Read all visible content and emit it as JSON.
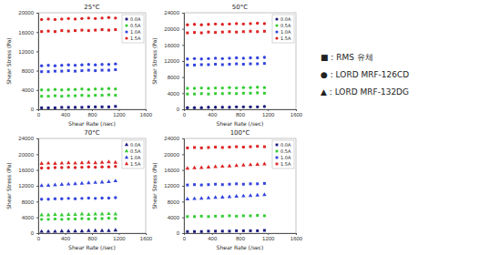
{
  "chart_data": [
    {
      "type": "scatter",
      "title": "25°C",
      "x_label": "Shear Rate (/sec)",
      "y_label": "Shear Stress (Pa)",
      "x": [
        50,
        150,
        250,
        350,
        450,
        550,
        650,
        750,
        850,
        950,
        1050,
        1150
      ],
      "xlim": [
        0,
        1600
      ],
      "xticks": [
        0,
        400,
        800,
        1200,
        1600
      ],
      "ylim": [
        0,
        20000
      ],
      "yticks": [
        0,
        4000,
        8000,
        12000,
        16000,
        20000
      ],
      "legend": "upper right",
      "series": [
        {
          "name": "0.0A",
          "color": "#1a1a80",
          "marker": "square",
          "values": [
            300,
            300,
            300,
            400,
            400,
            400,
            400,
            500,
            500,
            500,
            500,
            600
          ]
        },
        {
          "name": "0.5A",
          "color": "#33cc33",
          "marker": "circle",
          "values": [
            4000,
            4000,
            4100,
            4000,
            4100,
            4100,
            4200,
            4100,
            4200,
            4200,
            4300,
            4200
          ]
        },
        {
          "name": "0.5A",
          "color": "#33cc33",
          "marker": "square",
          "values": [
            2700,
            2700,
            2800,
            2700,
            2800,
            2800,
            2900,
            2800,
            2900,
            2900,
            3000,
            2900
          ]
        },
        {
          "name": "1.0A",
          "color": "#3344dd",
          "marker": "circle",
          "values": [
            9000,
            9100,
            9000,
            9100,
            9200,
            9100,
            9200,
            9300,
            9200,
            9300,
            9300,
            9400
          ]
        },
        {
          "name": "1.0A",
          "color": "#3344dd",
          "marker": "square",
          "values": [
            7800,
            7800,
            7900,
            7900,
            8000,
            7900,
            8000,
            8100,
            8000,
            8100,
            8100,
            8200
          ]
        },
        {
          "name": "1.5A",
          "color": "#dd2222",
          "marker": "circle",
          "values": [
            18600,
            18700,
            18600,
            18700,
            18800,
            18700,
            18800,
            18900,
            18800,
            18900,
            19000,
            18900
          ]
        },
        {
          "name": "1.5A",
          "color": "#dd2222",
          "marker": "square",
          "values": [
            16100,
            16200,
            16100,
            16300,
            16200,
            16300,
            16400,
            16300,
            16400,
            16500,
            16400,
            16500
          ]
        }
      ]
    },
    {
      "type": "scatter",
      "title": "50°C",
      "x_label": "Shear Rate (/sec)",
      "y_label": "Shear Stress (Pa)",
      "x": [
        50,
        150,
        250,
        350,
        450,
        550,
        650,
        750,
        850,
        950,
        1050,
        1150
      ],
      "xlim": [
        0,
        1600
      ],
      "xticks": [
        0,
        400,
        800,
        1200,
        1600
      ],
      "ylim": [
        0,
        24000
      ],
      "yticks": [
        0,
        4000,
        8000,
        12000,
        16000,
        20000,
        24000
      ],
      "legend": "upper right",
      "series": [
        {
          "name": "0.0A",
          "color": "#1a1a80",
          "marker": "circle",
          "values": [
            400,
            400,
            400,
            500,
            500,
            500,
            500,
            600,
            600,
            600,
            600,
            700
          ]
        },
        {
          "name": "0.5A",
          "color": "#33cc33",
          "marker": "circle",
          "values": [
            5200,
            5200,
            5300,
            5200,
            5300,
            5300,
            5400,
            5300,
            5400,
            5400,
            5500,
            5400
          ]
        },
        {
          "name": "0.5A",
          "color": "#33cc33",
          "marker": "square",
          "values": [
            3800,
            3800,
            3900,
            3800,
            3900,
            3900,
            4000,
            3900,
            4000,
            4000,
            4100,
            4000
          ]
        },
        {
          "name": "1.0A",
          "color": "#3344dd",
          "marker": "circle",
          "values": [
            12500,
            12600,
            12500,
            12600,
            12700,
            12600,
            12700,
            12800,
            12700,
            12800,
            12800,
            12900
          ]
        },
        {
          "name": "1.0A",
          "color": "#3344dd",
          "marker": "square",
          "values": [
            11000,
            11000,
            11100,
            11100,
            11200,
            11100,
            11200,
            11300,
            11200,
            11300,
            11300,
            11400
          ]
        },
        {
          "name": "1.5A",
          "color": "#dd2222",
          "marker": "circle",
          "values": [
            21000,
            21100,
            21000,
            21100,
            21200,
            21100,
            21200,
            21300,
            21200,
            21300,
            21400,
            21300
          ]
        },
        {
          "name": "1.5A",
          "color": "#dd2222",
          "marker": "square",
          "values": [
            19000,
            19100,
            19000,
            19200,
            19100,
            19200,
            19300,
            19200,
            19300,
            19400,
            19300,
            19400
          ]
        }
      ]
    },
    {
      "type": "scatter",
      "title": "70°C",
      "x_label": "Shear Rate (/sec)",
      "y_label": "Shear Stress (Pa)",
      "x": [
        50,
        150,
        250,
        350,
        450,
        550,
        650,
        750,
        850,
        950,
        1050,
        1150
      ],
      "xlim": [
        0,
        1600
      ],
      "xticks": [
        0,
        400,
        800,
        1200,
        1600
      ],
      "ylim": [
        0,
        24000
      ],
      "yticks": [
        0,
        4000,
        8000,
        12000,
        16000,
        20000,
        24000
      ],
      "legend": "upper right",
      "series": [
        {
          "name": "0.0A",
          "color": "#1a1a80",
          "marker": "triangle",
          "values": [
            400,
            400,
            400,
            500,
            500,
            500,
            500,
            600,
            600,
            600,
            600,
            700
          ]
        },
        {
          "name": "0.5A",
          "color": "#33cc33",
          "marker": "triangle",
          "values": [
            4600,
            4600,
            4700,
            4600,
            4700,
            4700,
            4800,
            4700,
            4800,
            4800,
            4900,
            4800
          ]
        },
        {
          "name": "0.5A",
          "color": "#33cc33",
          "marker": "circle",
          "values": [
            3500,
            3500,
            3600,
            3500,
            3600,
            3600,
            3700,
            3600,
            3700,
            3700,
            3800,
            3700
          ]
        },
        {
          "name": "1.0A",
          "color": "#3344dd",
          "marker": "triangle",
          "values": [
            12000,
            12100,
            12200,
            12300,
            12400,
            12500,
            12600,
            12700,
            12800,
            12900,
            13000,
            13200
          ]
        },
        {
          "name": "1.0A",
          "color": "#3344dd",
          "marker": "circle",
          "values": [
            8600,
            8600,
            8700,
            8700,
            8800,
            8700,
            8800,
            8900,
            8800,
            8900,
            8900,
            9000
          ]
        },
        {
          "name": "1.5A",
          "color": "#dd2222",
          "marker": "triangle",
          "values": [
            17600,
            17700,
            17600,
            17700,
            17800,
            17700,
            17800,
            17900,
            17800,
            17900,
            18000,
            17900
          ]
        },
        {
          "name": "1.5A",
          "color": "#dd2222",
          "marker": "circle",
          "values": [
            16500,
            16500,
            16600,
            16600,
            16700,
            16600,
            16700,
            16800,
            16700,
            16800,
            16800,
            16900
          ]
        }
      ]
    },
    {
      "type": "scatter",
      "title": "100°C",
      "x_label": "Shear Rate (/sec)",
      "y_label": "Shear Stress (Pa)",
      "x": [
        50,
        150,
        250,
        350,
        450,
        550,
        650,
        750,
        850,
        950,
        1050,
        1150
      ],
      "xlim": [
        0,
        1600
      ],
      "xticks": [
        0,
        400,
        800,
        1200,
        1600
      ],
      "ylim": [
        0,
        24000
      ],
      "yticks": [
        0,
        4000,
        8000,
        12000,
        16000,
        20000,
        24000
      ],
      "legend": "upper right",
      "series": [
        {
          "name": "0.0A",
          "color": "#1a1a80",
          "marker": "square",
          "values": [
            400,
            400,
            400,
            500,
            500,
            500,
            500,
            600,
            600,
            600,
            600,
            700
          ]
        },
        {
          "name": "0.5A",
          "color": "#33cc33",
          "marker": "square",
          "values": [
            4200,
            4200,
            4300,
            4200,
            4300,
            4300,
            4400,
            4300,
            4400,
            4400,
            4500,
            4400
          ]
        },
        {
          "name": "1.0A",
          "color": "#3344dd",
          "marker": "square",
          "values": [
            12200,
            12300,
            12200,
            12300,
            12400,
            12300,
            12400,
            12500,
            12400,
            12500,
            12500,
            12600
          ]
        },
        {
          "name": "1.0A",
          "color": "#3344dd",
          "marker": "triangle",
          "values": [
            8600,
            8700,
            8800,
            8900,
            9000,
            9100,
            9200,
            9300,
            9400,
            9500,
            9600,
            9700
          ]
        },
        {
          "name": "1.5A",
          "color": "#dd2222",
          "marker": "square",
          "values": [
            21600,
            21700,
            21600,
            21700,
            21800,
            21700,
            21800,
            21900,
            21800,
            21900,
            22000,
            21900
          ]
        },
        {
          "name": "1.5A",
          "color": "#dd2222",
          "marker": "triangle",
          "values": [
            16400,
            16500,
            16600,
            16700,
            16800,
            16900,
            17000,
            17100,
            17200,
            17300,
            17400,
            17500
          ]
        }
      ]
    }
  ],
  "marker_legend": [
    "■ : RMS 유체",
    "● : LORD MRF-126CD",
    "▲ : LORD MRF-132DG"
  ]
}
